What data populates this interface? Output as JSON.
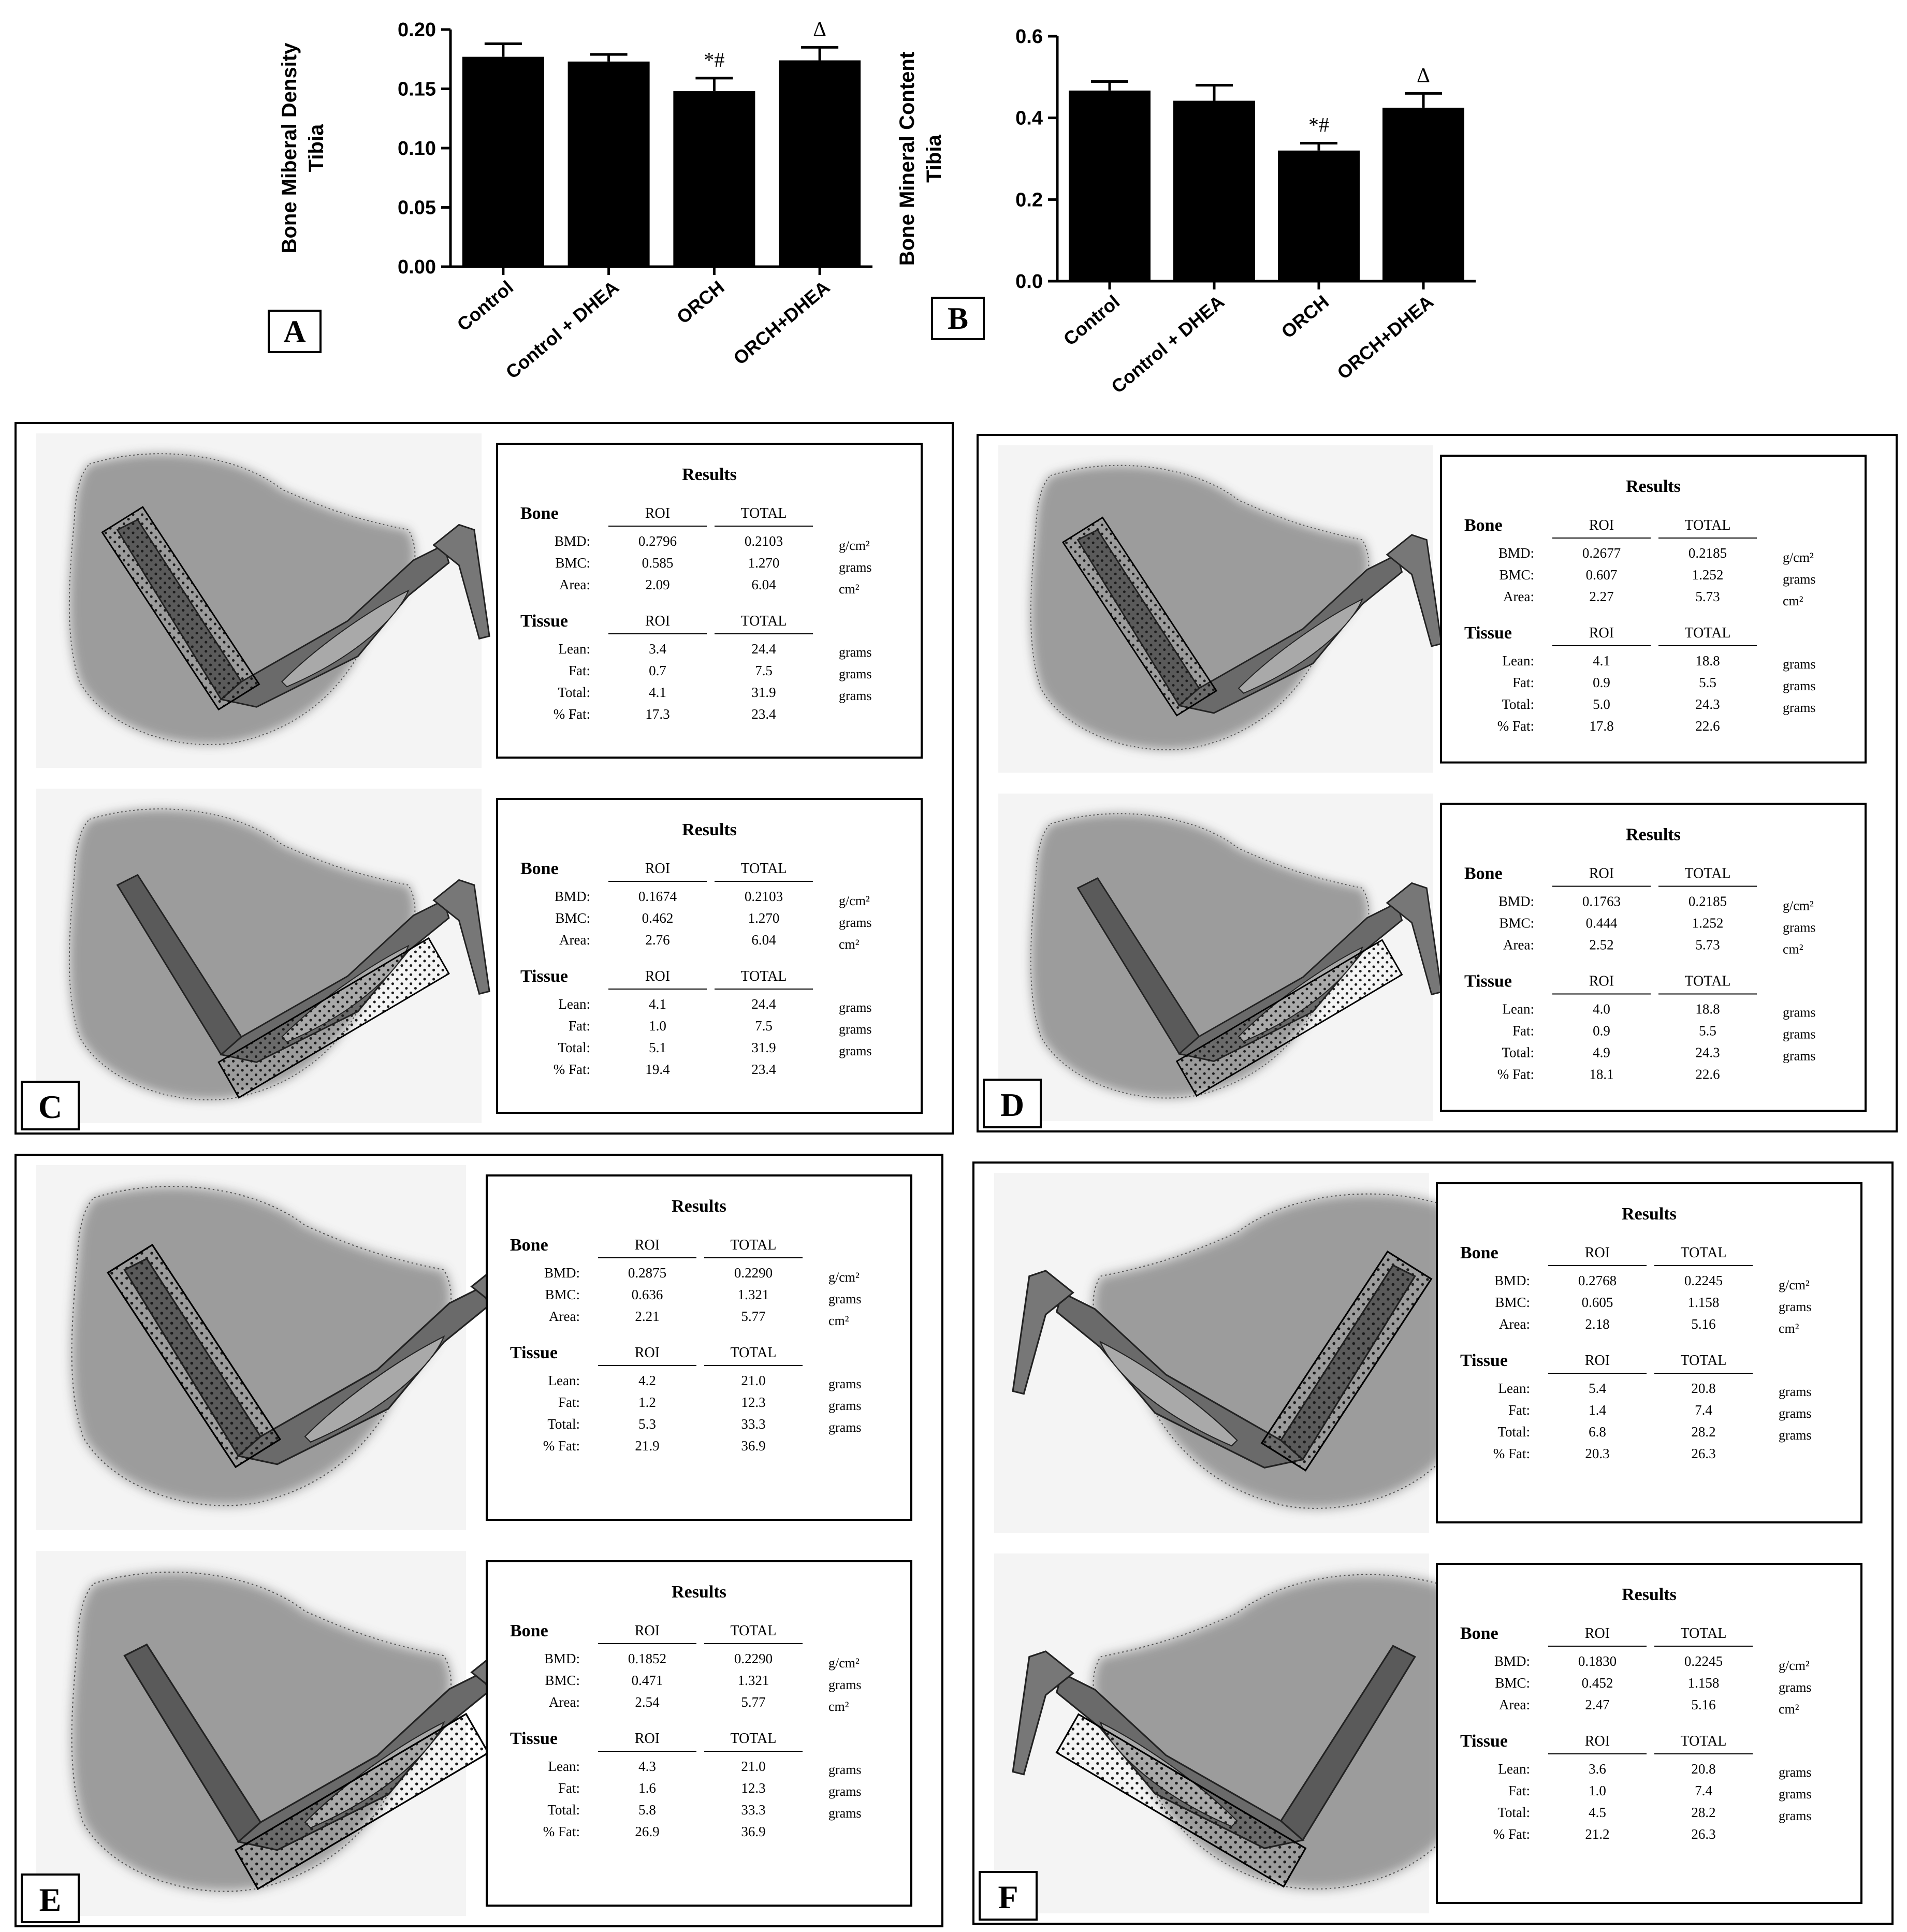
{
  "chart_data": [
    {
      "type": "bar",
      "panel_label": "A",
      "ylabel_lines": [
        "Bone Miberal Density",
        "Tibia"
      ],
      "categories": [
        "Control",
        "Control + DHEA",
        "ORCH",
        "ORCH+DHEA"
      ],
      "values": [
        0.177,
        0.173,
        0.148,
        0.174
      ],
      "errors": [
        0.011,
        0.006,
        0.011,
        0.011
      ],
      "markers": [
        "",
        "",
        "*#",
        "Δ"
      ],
      "ylim": [
        0,
        0.2
      ],
      "yticks": [
        0,
        0.05,
        0.1,
        0.15,
        0.2
      ],
      "ytick_labels": [
        "0.00",
        "0.05",
        "0.10",
        "0.15",
        "0.20"
      ],
      "bar_color": "#000000"
    },
    {
      "type": "bar",
      "panel_label": "B",
      "ylabel_lines": [
        "Bone Mineral Content",
        "Tibia"
      ],
      "categories": [
        "Control",
        "Control + DHEA",
        "ORCH",
        "ORCH+DHEA"
      ],
      "values": [
        0.467,
        0.442,
        0.32,
        0.425
      ],
      "errors": [
        0.022,
        0.038,
        0.018,
        0.035
      ],
      "markers": [
        "",
        "",
        "*#",
        "Δ"
      ],
      "ylim": [
        0,
        0.6
      ],
      "yticks": [
        0,
        0.2,
        0.4,
        0.6
      ],
      "ytick_labels": [
        "0.0",
        "0.2",
        "0.4",
        "0.6"
      ],
      "bar_color": "#000000"
    }
  ],
  "scans": [
    {
      "label": "C",
      "reports": [
        {
          "title": "Results",
          "bone_heading": "Bone",
          "tissue_heading": "Tissue",
          "col_roi": "ROI",
          "col_total": "TOTAL",
          "bone": [
            [
              "BMD:",
              "0.2796",
              "0.2103",
              "g/cm²"
            ],
            [
              "BMC:",
              "0.585",
              "1.270",
              "grams"
            ],
            [
              "Area:",
              "2.09",
              "6.04",
              "cm²"
            ]
          ],
          "tissue": [
            [
              "Lean:",
              "3.4",
              "24.4",
              "grams"
            ],
            [
              "Fat:",
              "0.7",
              "7.5",
              "grams"
            ],
            [
              "Total:",
              "4.1",
              "31.9",
              "grams"
            ],
            [
              "% Fat:",
              "17.3",
              "23.4",
              ""
            ]
          ]
        },
        {
          "title": "Results",
          "bone_heading": "Bone",
          "tissue_heading": "Tissue",
          "col_roi": "ROI",
          "col_total": "TOTAL",
          "bone": [
            [
              "BMD:",
              "0.1674",
              "0.2103",
              "g/cm²"
            ],
            [
              "BMC:",
              "0.462",
              "1.270",
              "grams"
            ],
            [
              "Area:",
              "2.76",
              "6.04",
              "cm²"
            ]
          ],
          "tissue": [
            [
              "Lean:",
              "4.1",
              "24.4",
              "grams"
            ],
            [
              "Fat:",
              "1.0",
              "7.5",
              "grams"
            ],
            [
              "Total:",
              "5.1",
              "31.9",
              "grams"
            ],
            [
              "% Fat:",
              "19.4",
              "23.4",
              ""
            ]
          ]
        }
      ]
    },
    {
      "label": "D",
      "reports": [
        {
          "title": "Results",
          "bone_heading": "Bone",
          "tissue_heading": "Tissue",
          "col_roi": "ROI",
          "col_total": "TOTAL",
          "bone": [
            [
              "BMD:",
              "0.2677",
              "0.2185",
              "g/cm²"
            ],
            [
              "BMC:",
              "0.607",
              "1.252",
              "grams"
            ],
            [
              "Area:",
              "2.27",
              "5.73",
              "cm²"
            ]
          ],
          "tissue": [
            [
              "Lean:",
              "4.1",
              "18.8",
              "grams"
            ],
            [
              "Fat:",
              "0.9",
              "5.5",
              "grams"
            ],
            [
              "Total:",
              "5.0",
              "24.3",
              "grams"
            ],
            [
              "% Fat:",
              "17.8",
              "22.6",
              ""
            ]
          ]
        },
        {
          "title": "Results",
          "bone_heading": "Bone",
          "tissue_heading": "Tissue",
          "col_roi": "ROI",
          "col_total": "TOTAL",
          "bone": [
            [
              "BMD:",
              "0.1763",
              "0.2185",
              "g/cm²"
            ],
            [
              "BMC:",
              "0.444",
              "1.252",
              "grams"
            ],
            [
              "Area:",
              "2.52",
              "5.73",
              "cm²"
            ]
          ],
          "tissue": [
            [
              "Lean:",
              "4.0",
              "18.8",
              "grams"
            ],
            [
              "Fat:",
              "0.9",
              "5.5",
              "grams"
            ],
            [
              "Total:",
              "4.9",
              "24.3",
              "grams"
            ],
            [
              "% Fat:",
              "18.1",
              "22.6",
              ""
            ]
          ]
        }
      ]
    },
    {
      "label": "E",
      "reports": [
        {
          "title": "Results",
          "bone_heading": "Bone",
          "tissue_heading": "Tissue",
          "col_roi": "ROI",
          "col_total": "TOTAL",
          "bone": [
            [
              "BMD:",
              "0.2875",
              "0.2290",
              "g/cm²"
            ],
            [
              "BMC:",
              "0.636",
              "1.321",
              "grams"
            ],
            [
              "Area:",
              "2.21",
              "5.77",
              "cm²"
            ]
          ],
          "tissue": [
            [
              "Lean:",
              "4.2",
              "21.0",
              "grams"
            ],
            [
              "Fat:",
              "1.2",
              "12.3",
              "grams"
            ],
            [
              "Total:",
              "5.3",
              "33.3",
              "grams"
            ],
            [
              "% Fat:",
              "21.9",
              "36.9",
              ""
            ]
          ]
        },
        {
          "title": "Results",
          "bone_heading": "Bone",
          "tissue_heading": "Tissue",
          "col_roi": "ROI",
          "col_total": "TOTAL",
          "bone": [
            [
              "BMD:",
              "0.1852",
              "0.2290",
              "g/cm²"
            ],
            [
              "BMC:",
              "0.471",
              "1.321",
              "grams"
            ],
            [
              "Area:",
              "2.54",
              "5.77",
              "cm²"
            ]
          ],
          "tissue": [
            [
              "Lean:",
              "4.3",
              "21.0",
              "grams"
            ],
            [
              "Fat:",
              "1.6",
              "12.3",
              "grams"
            ],
            [
              "Total:",
              "5.8",
              "33.3",
              "grams"
            ],
            [
              "% Fat:",
              "26.9",
              "36.9",
              ""
            ]
          ]
        }
      ]
    },
    {
      "label": "F",
      "reports": [
        {
          "title": "Results",
          "bone_heading": "Bone",
          "tissue_heading": "Tissue",
          "col_roi": "ROI",
          "col_total": "TOTAL",
          "bone": [
            [
              "BMD:",
              "0.2768",
              "0.2245",
              "g/cm²"
            ],
            [
              "BMC:",
              "0.605",
              "1.158",
              "grams"
            ],
            [
              "Area:",
              "2.18",
              "5.16",
              "cm²"
            ]
          ],
          "tissue": [
            [
              "Lean:",
              "5.4",
              "20.8",
              "grams"
            ],
            [
              "Fat:",
              "1.4",
              "7.4",
              "grams"
            ],
            [
              "Total:",
              "6.8",
              "28.2",
              "grams"
            ],
            [
              "% Fat:",
              "20.3",
              "26.3",
              ""
            ]
          ]
        },
        {
          "title": "Results",
          "bone_heading": "Bone",
          "tissue_heading": "Tissue",
          "col_roi": "ROI",
          "col_total": "TOTAL",
          "bone": [
            [
              "BMD:",
              "0.1830",
              "0.2245",
              "g/cm²"
            ],
            [
              "BMC:",
              "0.452",
              "1.158",
              "grams"
            ],
            [
              "Area:",
              "2.47",
              "5.16",
              "cm²"
            ]
          ],
          "tissue": [
            [
              "Lean:",
              "3.6",
              "20.8",
              "grams"
            ],
            [
              "Fat:",
              "1.0",
              "7.4",
              "grams"
            ],
            [
              "Total:",
              "4.5",
              "28.2",
              "grams"
            ],
            [
              "% Fat:",
              "21.2",
              "26.3",
              ""
            ]
          ]
        }
      ]
    }
  ]
}
